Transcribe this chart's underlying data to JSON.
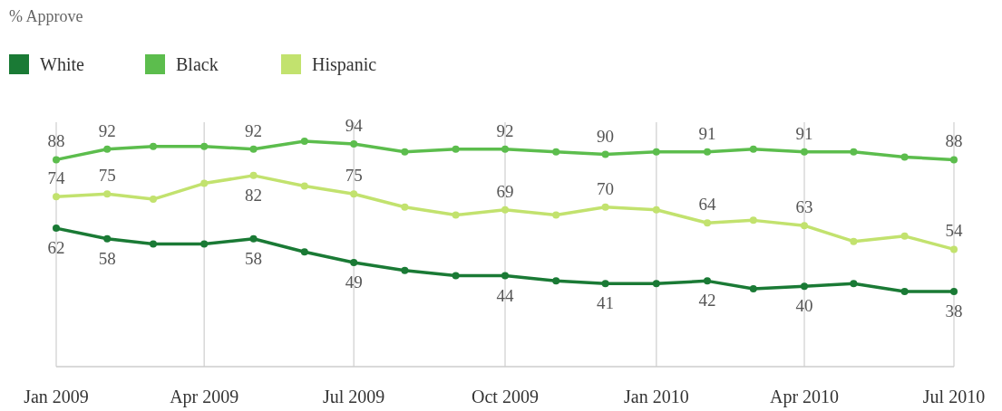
{
  "chart_data": {
    "type": "line",
    "subtitle": "% Approve",
    "x": [
      "2009-01",
      "2009-02",
      "2009-03",
      "2009-04",
      "2009-05",
      "2009-06",
      "2009-07",
      "2009-08",
      "2009-09",
      "2009-10",
      "2009-11",
      "2009-12",
      "2010-01",
      "2010-02",
      "2010-03",
      "2010-04",
      "2010-05",
      "2010-06",
      "2010-07"
    ],
    "xlim": [
      "2009-01",
      "2010-07"
    ],
    "xticks": [
      {
        "value": "2009-01",
        "label": "Jan 2009"
      },
      {
        "value": "2009-04",
        "label": "Apr 2009"
      },
      {
        "value": "2009-07",
        "label": "Jul 2009"
      },
      {
        "value": "2009-10",
        "label": "Oct 2009"
      },
      {
        "value": "2010-01",
        "label": "Jan 2010"
      },
      {
        "value": "2010-04",
        "label": "Apr 2010"
      },
      {
        "value": "2010-07",
        "label": "Jul 2010"
      }
    ],
    "series": [
      {
        "name": "White",
        "color": "#1a7a35",
        "values": [
          62,
          58,
          56,
          56,
          58,
          53,
          49,
          46,
          44,
          44,
          42,
          41,
          41,
          42,
          39,
          40,
          41,
          38,
          38
        ],
        "value_labels": [
          "62",
          "58",
          null,
          null,
          "58",
          null,
          "49",
          null,
          null,
          "44",
          null,
          "41",
          null,
          "42",
          null,
          "40",
          null,
          null,
          "38"
        ]
      },
      {
        "name": "Black",
        "color": "#5cbd4d",
        "values": [
          88,
          92,
          93,
          93,
          92,
          95,
          94,
          91,
          92,
          92,
          91,
          90,
          91,
          91,
          92,
          91,
          91,
          89,
          88
        ],
        "value_labels": [
          "88",
          "92",
          null,
          null,
          "92",
          null,
          "94",
          null,
          null,
          "92",
          null,
          "90",
          null,
          "91",
          null,
          "91",
          null,
          null,
          "88"
        ]
      },
      {
        "name": "Hispanic",
        "color": "#c2e26e",
        "values": [
          74,
          75,
          73,
          79,
          82,
          78,
          75,
          70,
          67,
          69,
          67,
          70,
          69,
          64,
          65,
          63,
          57,
          59,
          54
        ],
        "value_labels": [
          "74",
          "75",
          null,
          null,
          "82",
          null,
          "75",
          null,
          null,
          "69",
          null,
          "70",
          null,
          "64",
          null,
          "63",
          null,
          null,
          "54"
        ]
      }
    ],
    "grid": "x",
    "legend": "top left",
    "marker": "circle",
    "line_style": "solid"
  }
}
